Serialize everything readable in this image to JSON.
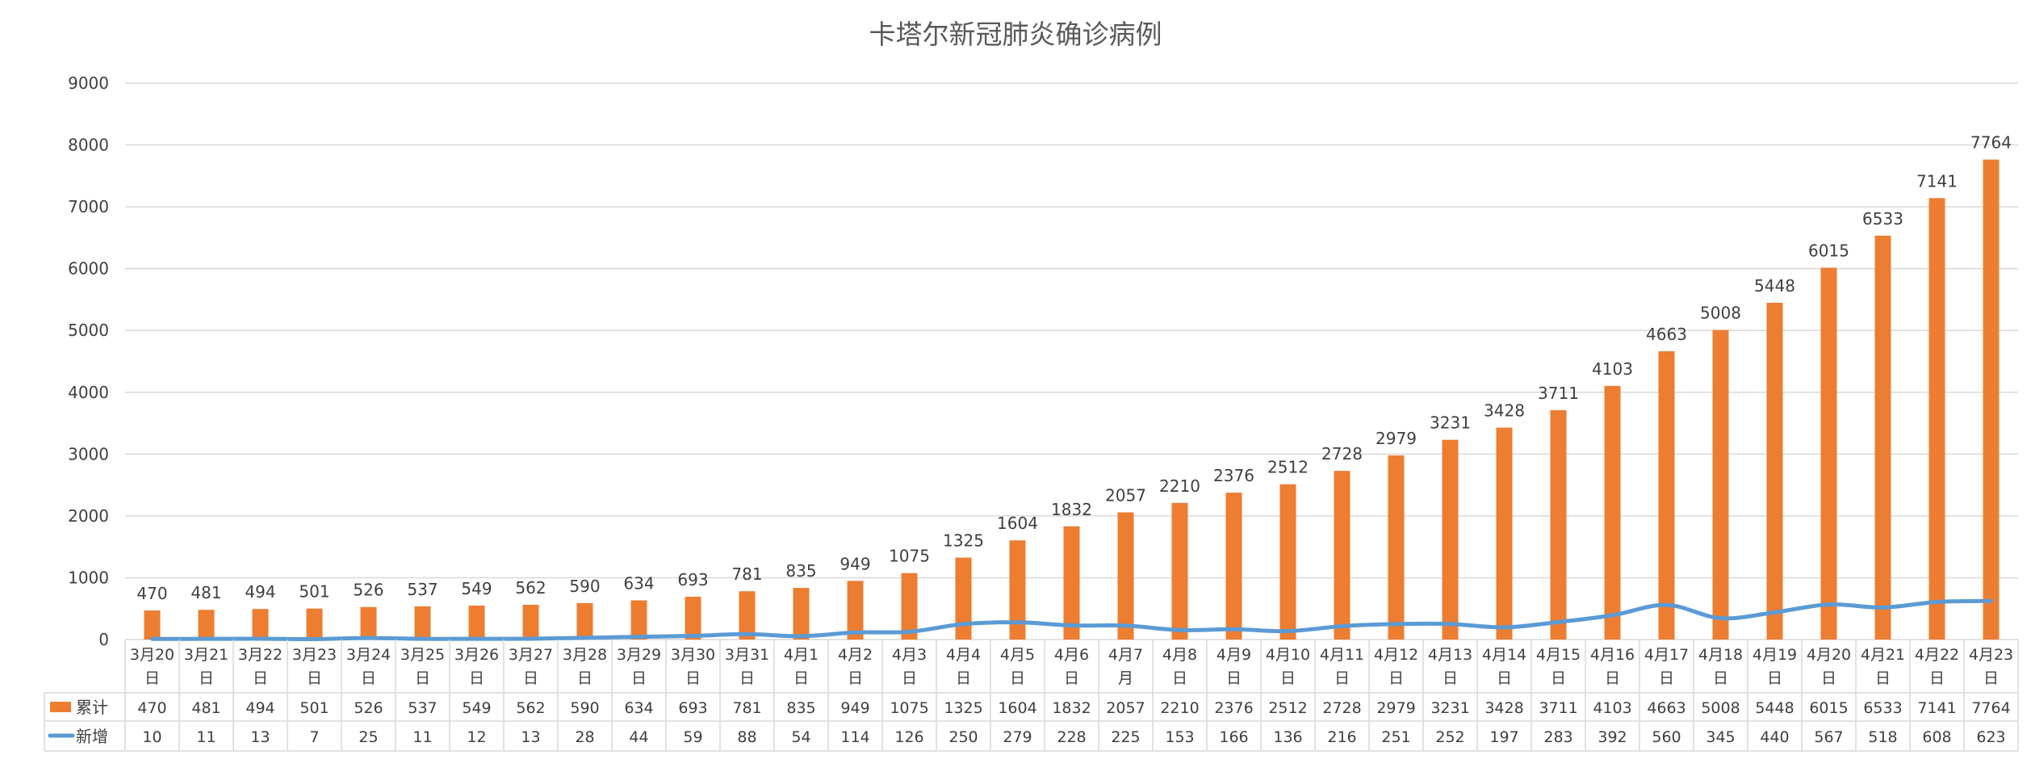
{
  "chart_data": {
    "type": "bar+line",
    "title": "卡塔尔新冠肺炎确诊病例",
    "ylim": [
      0,
      9000
    ],
    "yticks": [
      0,
      1000,
      2000,
      3000,
      4000,
      5000,
      6000,
      7000,
      8000,
      9000
    ],
    "grid": true,
    "legend_placement": "data-table-left",
    "categories": [
      "3月20日",
      "3月21日",
      "3月22日",
      "3月23日",
      "3月24日",
      "3月25日",
      "3月26日",
      "3月27日",
      "3月28日",
      "3月29日",
      "3月30日",
      "3月31日",
      "4月1日",
      "4月2日",
      "4月3日",
      "4月4日",
      "4月5日",
      "4月6日",
      "4月7月",
      "4月8日",
      "4月9日",
      "4月10日",
      "4月11日",
      "4月12日",
      "4月13日",
      "4月14日",
      "4月15日",
      "4月16日",
      "4月17日",
      "4月18日",
      "4月19日",
      "4月20日",
      "4月21日",
      "4月22日",
      "4月23日"
    ],
    "series": [
      {
        "name": "累计",
        "type": "bar",
        "color": "#ED7D31",
        "values": [
          470,
          481,
          494,
          501,
          526,
          537,
          549,
          562,
          590,
          634,
          693,
          781,
          835,
          949,
          1075,
          1325,
          1604,
          1832,
          2057,
          2210,
          2376,
          2512,
          2728,
          2979,
          3231,
          3428,
          3711,
          4103,
          4663,
          5008,
          5448,
          6015,
          6533,
          7141,
          7764
        ]
      },
      {
        "name": "新增",
        "type": "line",
        "color": "#5B9BD5",
        "values": [
          10,
          11,
          13,
          7,
          25,
          11,
          12,
          13,
          28,
          44,
          59,
          88,
          54,
          114,
          126,
          250,
          279,
          228,
          225,
          153,
          166,
          136,
          216,
          251,
          252,
          197,
          283,
          392,
          560,
          345,
          440,
          567,
          518,
          608,
          623
        ]
      }
    ]
  }
}
